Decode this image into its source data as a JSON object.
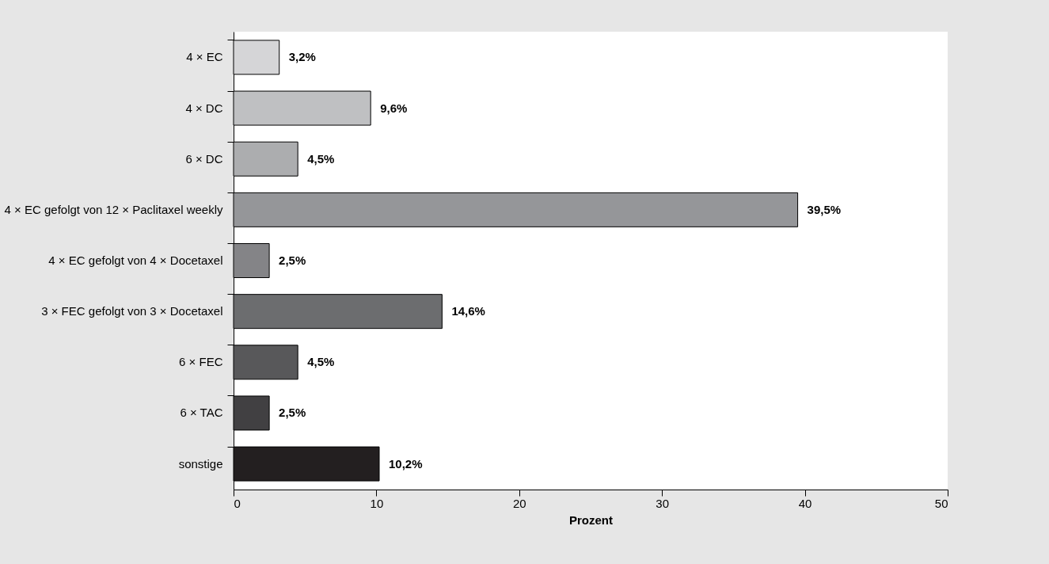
{
  "chart_data": {
    "type": "bar",
    "orientation": "horizontal",
    "xlabel": "Prozent",
    "categories": [
      "4 × EC",
      "4 × DC",
      "6 × DC",
      "4 × EC gefolgt von 12 × Paclitaxel weekly",
      "4 × EC gefolgt von 4 × Docetaxel",
      "3 × FEC gefolgt von 3 × Docetaxel",
      "6 × FEC",
      "6 × TAC",
      "sonstige"
    ],
    "values": [
      3.2,
      9.6,
      4.5,
      39.5,
      2.5,
      14.6,
      4.5,
      2.5,
      10.2
    ],
    "value_labels": [
      "3,2%",
      "9,6%",
      "4,5%",
      "39,5%",
      "2,5%",
      "14,6%",
      "4,5%",
      "2,5%",
      "10,2%"
    ],
    "colors": [
      "#d5d5d7",
      "#bfc0c2",
      "#acadaf",
      "#959699",
      "#848487",
      "#6c6d6f",
      "#58585a",
      "#414042",
      "#231f20"
    ],
    "xlim": [
      0,
      50
    ],
    "xticks": [
      0,
      10,
      20,
      30,
      40,
      50
    ],
    "grid": false,
    "legend": false
  }
}
